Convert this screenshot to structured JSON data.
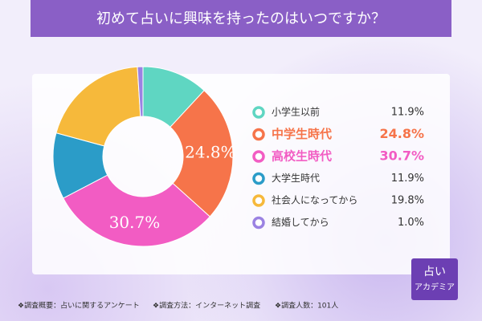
{
  "chart_data": {
    "type": "donut",
    "title": "初めて占いに興味を持ったのはいつですか？",
    "categories": [
      "小学生以前",
      "中学生時代",
      "高校生時代",
      "大学生時代",
      "社会人になってから",
      "結婚してから"
    ],
    "values": [
      11.9,
      24.8,
      30.7,
      11.9,
      19.8,
      1.0
    ],
    "value_labels": [
      "11.9%",
      "24.8%",
      "30.7%",
      "11.9%",
      "19.8%",
      "1.0%"
    ],
    "colors": [
      "#5fd6c2",
      "#f6744a",
      "#f25cc3",
      "#2b9cc8",
      "#f6b93b",
      "#9b82e2"
    ],
    "highlight": [
      1,
      2
    ]
  },
  "footer": [
    "❖調査概要：占いに関するアンケート",
    "❖調査方法：インターネット調査",
    "❖調査人数：101人"
  ],
  "logo": [
    "占い",
    "アカデミア"
  ]
}
